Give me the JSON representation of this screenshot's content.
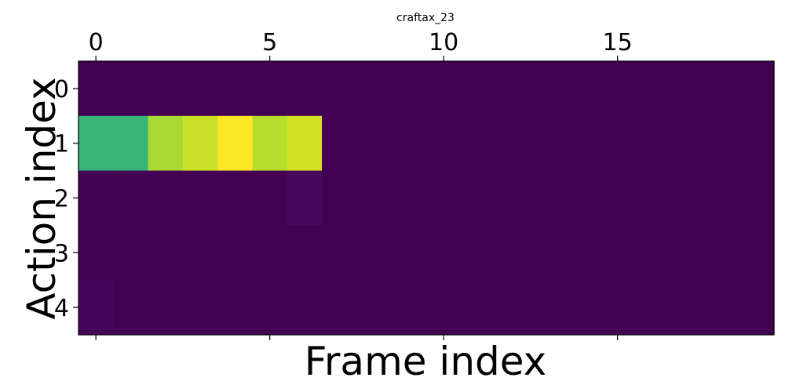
{
  "chart_data": {
    "type": "heatmap",
    "title": "craftax_23",
    "xlabel": "Frame index",
    "ylabel": "Action index",
    "x_tick_labels": [
      "0",
      "5",
      "10",
      "15"
    ],
    "x_tick_values": [
      0,
      5,
      10,
      15
    ],
    "y_tick_labels": [
      "0",
      "1",
      "2",
      "3",
      "4"
    ],
    "y_tick_values": [
      0,
      1,
      2,
      3,
      4
    ],
    "x_axis_position": "top",
    "grid": false,
    "legend": "none",
    "colormap": "viridis",
    "value_range": [
      0,
      1
    ],
    "n_cols": 20,
    "n_rows": 5,
    "values": [
      [
        0,
        0,
        0,
        0,
        0,
        0,
        0,
        0,
        0,
        0,
        0,
        0,
        0,
        0,
        0,
        0,
        0,
        0,
        0,
        0
      ],
      [
        0.66,
        0.66,
        0.87,
        0.92,
        1.0,
        0.89,
        0.93,
        0,
        0,
        0,
        0,
        0,
        0,
        0,
        0,
        0,
        0,
        0,
        0,
        0
      ],
      [
        0,
        0,
        0,
        0,
        0,
        0,
        0.02,
        0,
        0,
        0,
        0,
        0,
        0,
        0,
        0,
        0,
        0,
        0,
        0,
        0
      ],
      [
        0,
        0,
        0,
        0,
        0,
        0,
        0,
        0,
        0,
        0,
        0,
        0,
        0,
        0,
        0,
        0,
        0,
        0,
        0,
        0
      ],
      [
        0.015,
        0,
        0,
        0,
        0,
        0,
        0,
        0,
        0,
        0,
        0,
        0,
        0,
        0,
        0,
        0,
        0,
        0,
        0,
        0
      ]
    ]
  }
}
